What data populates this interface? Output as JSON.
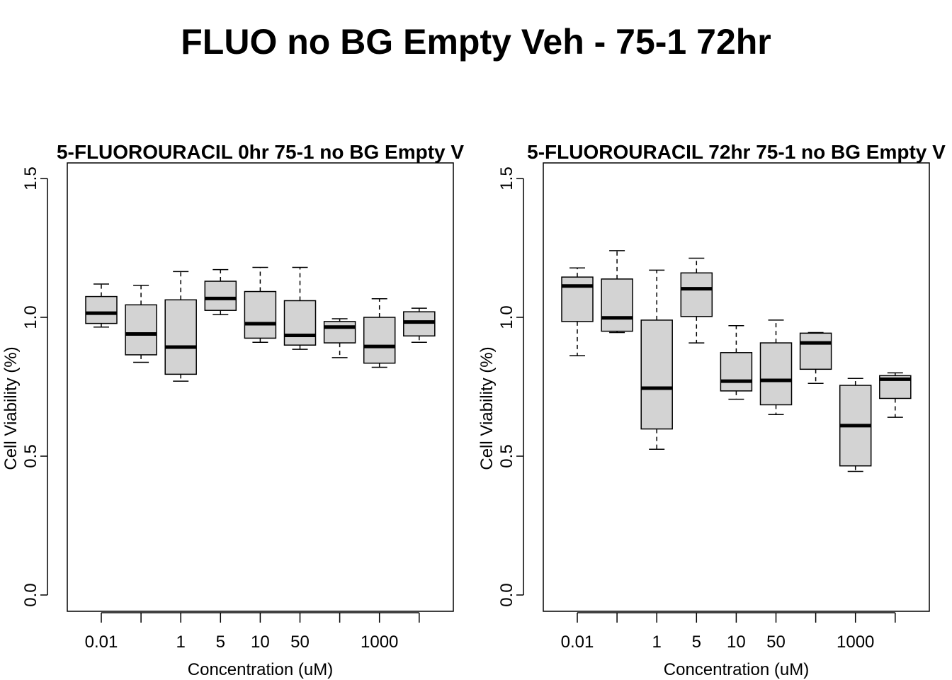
{
  "title": "FLUO no BG Empty Veh - 75-1 72hr",
  "chart_data": [
    {
      "type": "boxplot",
      "title": "5-FLUOROURACIL 0hr 75-1 no BG Empty V",
      "xlabel": "Concentration (uM)",
      "ylabel": "Cell Viability (%)",
      "ylim": [
        0,
        1.5
      ],
      "yticks": [
        "0.0",
        "0.5",
        "1.0",
        "1.5"
      ],
      "categories": [
        "0.01",
        "",
        "1",
        "5",
        "10",
        "50",
        "",
        "1000",
        ""
      ],
      "fill": "#d3d3d3",
      "boxes": [
        {
          "whisker_low": 0.965,
          "q1": 0.978,
          "median": 1.015,
          "q3": 1.075,
          "whisker_high": 1.12
        },
        {
          "whisker_low": 0.838,
          "q1": 0.865,
          "median": 0.94,
          "q3": 1.045,
          "whisker_high": 1.115
        },
        {
          "whisker_low": 0.77,
          "q1": 0.795,
          "median": 0.893,
          "q3": 1.063,
          "whisker_high": 1.165
        },
        {
          "whisker_low": 1.01,
          "q1": 1.025,
          "median": 1.068,
          "q3": 1.13,
          "whisker_high": 1.172
        },
        {
          "whisker_low": 0.91,
          "q1": 0.925,
          "median": 0.977,
          "q3": 1.093,
          "whisker_high": 1.18
        },
        {
          "whisker_low": 0.885,
          "q1": 0.9,
          "median": 0.935,
          "q3": 1.06,
          "whisker_high": 1.18
        },
        {
          "whisker_low": 0.855,
          "q1": 0.908,
          "median": 0.965,
          "q3": 0.985,
          "whisker_high": 0.995
        },
        {
          "whisker_low": 0.82,
          "q1": 0.835,
          "median": 0.895,
          "q3": 1.0,
          "whisker_high": 1.067
        },
        {
          "whisker_low": 0.91,
          "q1": 0.933,
          "median": 0.983,
          "q3": 1.02,
          "whisker_high": 1.033
        }
      ]
    },
    {
      "type": "boxplot",
      "title": "5-FLUOROURACIL 72hr 75-1 no BG Empty V",
      "xlabel": "Concentration (uM)",
      "ylabel": "Cell Viability (%)",
      "ylim": [
        0,
        1.5
      ],
      "yticks": [
        "0.0",
        "0.5",
        "1.0",
        "1.5"
      ],
      "categories": [
        "0.01",
        "",
        "1",
        "5",
        "10",
        "50",
        "",
        "1000",
        ""
      ],
      "fill": "#d3d3d3",
      "boxes": [
        {
          "whisker_low": 0.862,
          "q1": 0.985,
          "median": 1.113,
          "q3": 1.145,
          "whisker_high": 1.178
        },
        {
          "whisker_low": 0.945,
          "q1": 0.95,
          "median": 0.998,
          "q3": 1.138,
          "whisker_high": 1.24
        },
        {
          "whisker_low": 0.525,
          "q1": 0.598,
          "median": 0.745,
          "q3": 0.99,
          "whisker_high": 1.17
        },
        {
          "whisker_low": 0.908,
          "q1": 1.003,
          "median": 1.103,
          "q3": 1.16,
          "whisker_high": 1.213
        },
        {
          "whisker_low": 0.705,
          "q1": 0.735,
          "median": 0.77,
          "q3": 0.873,
          "whisker_high": 0.97
        },
        {
          "whisker_low": 0.65,
          "q1": 0.685,
          "median": 0.773,
          "q3": 0.908,
          "whisker_high": 0.99
        },
        {
          "whisker_low": 0.762,
          "q1": 0.813,
          "median": 0.908,
          "q3": 0.943,
          "whisker_high": 0.945
        },
        {
          "whisker_low": 0.445,
          "q1": 0.465,
          "median": 0.61,
          "q3": 0.755,
          "whisker_high": 0.78
        },
        {
          "whisker_low": 0.64,
          "q1": 0.708,
          "median": 0.777,
          "q3": 0.79,
          "whisker_high": 0.8
        }
      ]
    }
  ]
}
